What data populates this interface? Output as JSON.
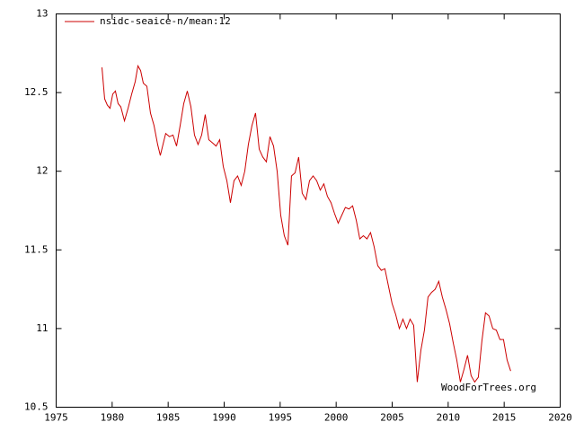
{
  "chart_data": {
    "type": "line",
    "legend": "top-left",
    "annotation": "WoodForTrees.org",
    "xlim": [
      1975,
      2020
    ],
    "xticks": [
      1975,
      1980,
      1985,
      1990,
      1995,
      2000,
      2005,
      2010,
      2015,
      2020
    ],
    "ylim": [
      10.5,
      13
    ],
    "yticks": [
      10.5,
      11,
      11.5,
      12,
      12.5,
      13
    ],
    "series": [
      {
        "name": "nsidc-seaice-n/mean:12",
        "color": "#cc0000",
        "x": [
          1979.09,
          1979.33,
          1979.57,
          1979.81,
          1980.05,
          1980.29,
          1980.53,
          1980.77,
          1981.1,
          1981.42,
          1981.74,
          1982.06,
          1982.3,
          1982.54,
          1982.78,
          1983.1,
          1983.42,
          1983.74,
          1984.06,
          1984.3,
          1984.54,
          1984.78,
          1985.11,
          1985.43,
          1985.75,
          1986.07,
          1986.39,
          1986.71,
          1987.03,
          1987.35,
          1987.67,
          1987.99,
          1988.31,
          1988.63,
          1988.96,
          1989.28,
          1989.6,
          1989.92,
          1990.24,
          1990.56,
          1990.88,
          1991.2,
          1991.52,
          1991.84,
          1992.16,
          1992.48,
          1992.8,
          1993.13,
          1993.45,
          1993.77,
          1994.09,
          1994.41,
          1994.73,
          1995.05,
          1995.37,
          1995.69,
          1996.01,
          1996.33,
          1996.65,
          1996.97,
          1997.3,
          1997.62,
          1997.94,
          1998.26,
          1998.58,
          1998.9,
          1999.22,
          1999.54,
          1999.86,
          2000.18,
          2000.5,
          2000.82,
          2001.14,
          2001.47,
          2001.79,
          2002.11,
          2002.43,
          2002.75,
          2003.07,
          2003.39,
          2003.71,
          2004.03,
          2004.35,
          2004.67,
          2004.99,
          2005.31,
          2005.64,
          2005.96,
          2006.28,
          2006.6,
          2006.92,
          2007.24,
          2007.56,
          2007.88,
          2008.2,
          2008.52,
          2008.84,
          2009.16,
          2009.48,
          2009.81,
          2010.13,
          2010.45,
          2010.77,
          2011.09,
          2011.41,
          2011.73,
          2012.05,
          2012.37,
          2012.69,
          2013.01,
          2013.33,
          2013.65,
          2013.98,
          2014.3,
          2014.62,
          2014.94,
          2015.26,
          2015.58
        ],
        "values": [
          12.66,
          12.46,
          12.42,
          12.4,
          12.49,
          12.51,
          12.43,
          12.41,
          12.32,
          12.4,
          12.49,
          12.57,
          12.67,
          12.64,
          12.56,
          12.54,
          12.37,
          12.29,
          12.17,
          12.1,
          12.17,
          12.24,
          12.22,
          12.23,
          12.16,
          12.29,
          12.43,
          12.51,
          12.41,
          12.23,
          12.17,
          12.23,
          12.36,
          12.2,
          12.18,
          12.16,
          12.2,
          12.03,
          11.94,
          11.8,
          11.94,
          11.97,
          11.91,
          12.0,
          12.17,
          12.29,
          12.37,
          12.14,
          12.09,
          12.06,
          12.22,
          12.16,
          12.0,
          11.72,
          11.59,
          11.53,
          11.97,
          11.99,
          12.09,
          11.86,
          11.82,
          11.94,
          11.97,
          11.94,
          11.88,
          11.92,
          11.84,
          11.8,
          11.73,
          11.67,
          11.72,
          11.77,
          11.76,
          11.78,
          11.69,
          11.57,
          11.59,
          11.57,
          11.61,
          11.52,
          11.4,
          11.37,
          11.38,
          11.27,
          11.16,
          11.09,
          11.0,
          11.06,
          11.0,
          11.06,
          11.02,
          10.66,
          10.86,
          10.99,
          11.2,
          11.23,
          11.25,
          11.3,
          11.2,
          11.12,
          11.03,
          10.91,
          10.8,
          10.66,
          10.74,
          10.83,
          10.7,
          10.66,
          10.69,
          10.92,
          11.1,
          11.08,
          11.0,
          10.99,
          10.93,
          10.93,
          10.8,
          10.73
        ]
      }
    ]
  }
}
